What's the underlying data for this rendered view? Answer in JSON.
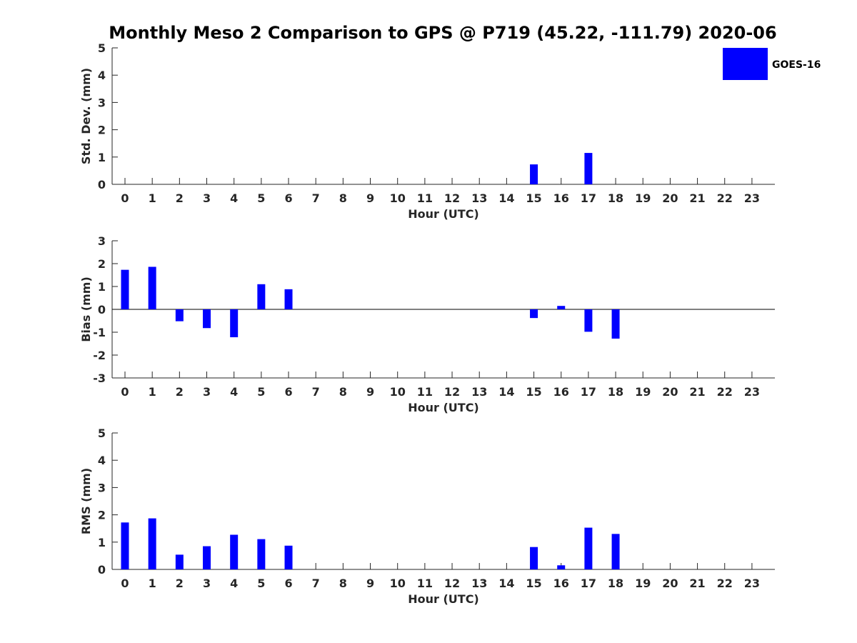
{
  "chart_data": {
    "type": "bar",
    "title": "Monthly Meso 2 Comparison to GPS @ P719 (45.22, -111.79) 2020-06",
    "legend": {
      "entries": [
        "GOES-16"
      ],
      "placement": "top-right"
    },
    "colors": {
      "bar": "#0000ff",
      "axis": "#262626"
    },
    "categories": [
      "0",
      "1",
      "2",
      "3",
      "4",
      "5",
      "6",
      "7",
      "8",
      "9",
      "10",
      "11",
      "12",
      "13",
      "14",
      "15",
      "16",
      "17",
      "18",
      "19",
      "20",
      "21",
      "22",
      "23"
    ],
    "panels": [
      {
        "xlabel": "Hour (UTC)",
        "ylabel": "Std. Dev. (mm)",
        "ylim": [
          0,
          5
        ],
        "yticks": [
          0,
          1,
          2,
          3,
          4,
          5
        ],
        "zero_line": false,
        "series": [
          {
            "name": "GOES-16",
            "values": [
              0,
              0,
              0,
              0,
              0,
              0,
              0,
              0,
              0,
              0,
              0,
              0,
              0,
              0,
              0,
              0.73,
              0,
              1.15,
              0,
              0,
              0,
              0,
              0,
              0
            ]
          }
        ]
      },
      {
        "xlabel": "Hour (UTC)",
        "ylabel": "Bias (mm)",
        "ylim": [
          -3,
          3
        ],
        "yticks": [
          -3,
          -2,
          -1,
          0,
          1,
          2,
          3
        ],
        "zero_line": true,
        "series": [
          {
            "name": "GOES-16",
            "values": [
              1.73,
              1.86,
              -0.52,
              -0.82,
              -1.22,
              1.1,
              0.88,
              0,
              0,
              0,
              0,
              0,
              0,
              0,
              0,
              -0.38,
              0.15,
              -0.98,
              -1.28,
              0,
              0,
              0,
              0,
              0
            ]
          }
        ]
      },
      {
        "xlabel": "Hour (UTC)",
        "ylabel": "RMS (mm)",
        "ylim": [
          0,
          5
        ],
        "yticks": [
          0,
          1,
          2,
          3,
          4,
          5
        ],
        "zero_line": false,
        "series": [
          {
            "name": "GOES-16",
            "values": [
              1.72,
              1.87,
              0.54,
              0.85,
              1.27,
              1.11,
              0.87,
              0,
              0,
              0,
              0,
              0,
              0,
              0,
              0,
              0.82,
              0.15,
              1.53,
              1.3,
              0,
              0,
              0,
              0,
              0
            ]
          }
        ]
      }
    ]
  }
}
